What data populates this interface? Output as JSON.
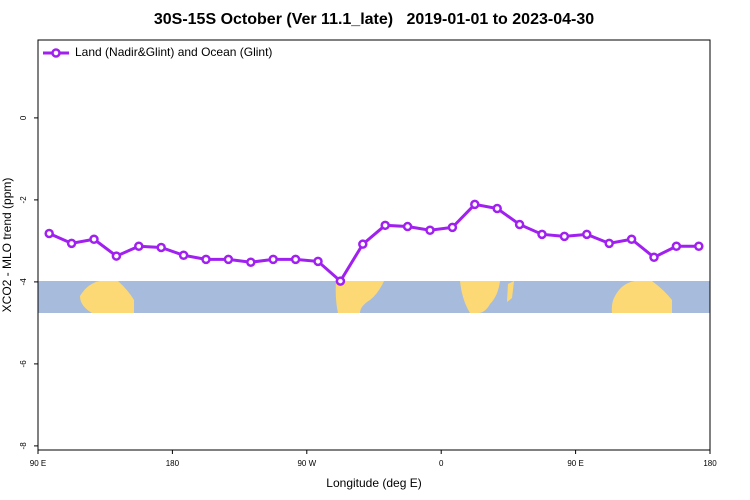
{
  "chart_data": {
    "type": "line",
    "title": "30S-15S October (Ver 11.1_late)   2019-01-01 to 2023-04-30",
    "xlabel": "Longitude (deg E)",
    "ylabel": "XCO2 - MLO trend (ppm)",
    "x": [
      97.5,
      112.5,
      127.5,
      142.5,
      157.5,
      172.5,
      187.5,
      202.5,
      217.5,
      232.5,
      247.5,
      262.5,
      277.5,
      292.5,
      307.5,
      322.5,
      337.5,
      352.5,
      367.5,
      382.5,
      397.5,
      412.5,
      427.5,
      442.5,
      457.5,
      472.5,
      487.5,
      502.5,
      517.5,
      532.5
    ],
    "series": [
      {
        "name": "Land (Nadir&Glint) and Ocean (Glint)",
        "color": "#a020f0",
        "values": [
          -2.82,
          -3.06,
          -2.96,
          -3.37,
          -3.13,
          -3.16,
          -3.35,
          -3.45,
          -3.45,
          -3.52,
          -3.45,
          -3.45,
          -3.5,
          -3.98,
          -3.08,
          -2.62,
          -2.65,
          -2.74,
          -2.67,
          -2.11,
          -2.21,
          -2.6,
          -2.84,
          -2.89,
          -2.84,
          -3.06,
          -2.96,
          -3.4,
          -3.13,
          -3.13
        ]
      }
    ],
    "xlim": [
      90,
      540
    ],
    "xticks": [
      {
        "value": 90,
        "label": "90 E"
      },
      {
        "value": 180,
        "label": "180"
      },
      {
        "value": 270,
        "label": "90 W"
      },
      {
        "value": 360,
        "label": "0"
      },
      {
        "value": 450,
        "label": "90 E"
      },
      {
        "value": 540,
        "label": "180"
      }
    ],
    "ylim": [
      -8.1,
      1.9
    ],
    "yticks": [
      0,
      -2,
      -4,
      -6,
      -8
    ],
    "legend": "upper left"
  }
}
